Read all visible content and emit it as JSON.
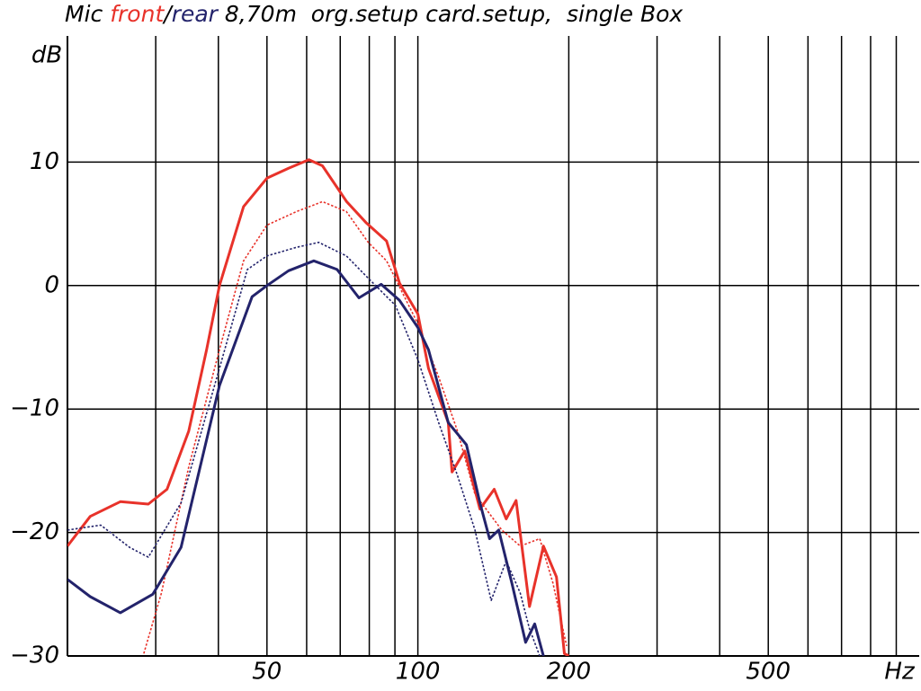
{
  "chart_data": {
    "type": "line",
    "title_parts": [
      {
        "text": "Mic ",
        "color": "#000000"
      },
      {
        "text": "front",
        "color": "#e8322a"
      },
      {
        "text": "/",
        "color": "#000000"
      },
      {
        "text": "rear",
        "color": "#23236b"
      },
      {
        "text": " 8,70m  org.setup card.setup,  single Box",
        "color": "#000000"
      }
    ],
    "y_label": "dB",
    "x_label": "Hz",
    "xscale": "log",
    "xlim": [
      20,
      1000
    ],
    "ylim": [
      -30,
      20
    ],
    "xticks": [
      50,
      100,
      200,
      500
    ],
    "x_grid": [
      30,
      40,
      50,
      60,
      70,
      80,
      90,
      100,
      200,
      300,
      400,
      500,
      600,
      700,
      800,
      900
    ],
    "yticks": [
      {
        "value": -30,
        "label": "−30"
      },
      {
        "value": -20,
        "label": "−20"
      },
      {
        "value": -10,
        "label": "−10"
      },
      0,
      10
    ],
    "grid": true,
    "series": [
      {
        "color": "#e8322a",
        "style": "solid",
        "x": [
          20,
          22.2,
          25.5,
          29.0,
          31.6,
          34.9,
          37.9,
          40.2,
          44.9,
          50,
          55.2,
          60.6,
          64.5,
          72.1,
          78.8,
          86.6,
          91.9,
          100,
          105,
          115,
          117,
          124,
          133,
          142,
          150,
          157,
          167,
          178,
          189,
          196,
          200
        ],
        "values": [
          -21.1,
          -18.7,
          -17.5,
          -17.7,
          -16.5,
          -11.8,
          -5.2,
          0,
          6.4,
          8.7,
          9.5,
          10.2,
          9.7,
          6.8,
          5.1,
          3.6,
          0.2,
          -2.3,
          -6.7,
          -11.1,
          -15.1,
          -13.4,
          -18.1,
          -16.5,
          -18.9,
          -17.4,
          -26,
          -21.1,
          -23.6,
          -29.8,
          -30
        ]
      },
      {
        "color": "#e8322a",
        "style": "dotted",
        "x": [
          28.4,
          30.8,
          34.9,
          40.2,
          44.9,
          50,
          57.3,
          64.5,
          72,
          79.6,
          86.6,
          100,
          110,
          120,
          130,
          147,
          160,
          175,
          186,
          198
        ],
        "values": [
          -29.8,
          -24.9,
          -14.7,
          -5.2,
          2,
          4.9,
          6,
          6.8,
          6,
          3.5,
          2,
          -3.1,
          -7.4,
          -11.8,
          -16.9,
          -19.8,
          -21.1,
          -20.5,
          -24.1,
          -29.2
        ]
      },
      {
        "color": "#23236b",
        "style": "solid",
        "x": [
          20,
          22.2,
          25.5,
          29.6,
          33.7,
          40.2,
          46.7,
          50,
          55.2,
          62,
          69,
          76.3,
          84.5,
          91.9,
          100,
          105,
          115,
          125,
          133,
          139,
          145,
          154,
          164,
          171,
          178
        ],
        "values": [
          -23.8,
          -25.2,
          -26.5,
          -25,
          -21.2,
          -8.1,
          -0.9,
          0,
          1.2,
          2,
          1.3,
          -1,
          0.1,
          -1.2,
          -3.4,
          -5.2,
          -11.1,
          -12.9,
          -17.6,
          -20.5,
          -19.8,
          -24.1,
          -28.9,
          -27.4,
          -30
        ]
      },
      {
        "color": "#23236b",
        "style": "dotted",
        "x": [
          20,
          23.3,
          26.6,
          29,
          33.7,
          40.2,
          45.7,
          50,
          57.3,
          63.4,
          72,
          79.6,
          90.2,
          100,
          110,
          120,
          130,
          140,
          150,
          160,
          167,
          175
        ],
        "values": [
          -19.8,
          -19.4,
          -21.2,
          -22,
          -17.6,
          -6.7,
          1.3,
          2.4,
          3.1,
          3.5,
          2.4,
          0.6,
          -1.6,
          -6,
          -11.1,
          -15.4,
          -19.8,
          -25.5,
          -22.3,
          -24.9,
          -27.8,
          -30
        ]
      }
    ]
  }
}
